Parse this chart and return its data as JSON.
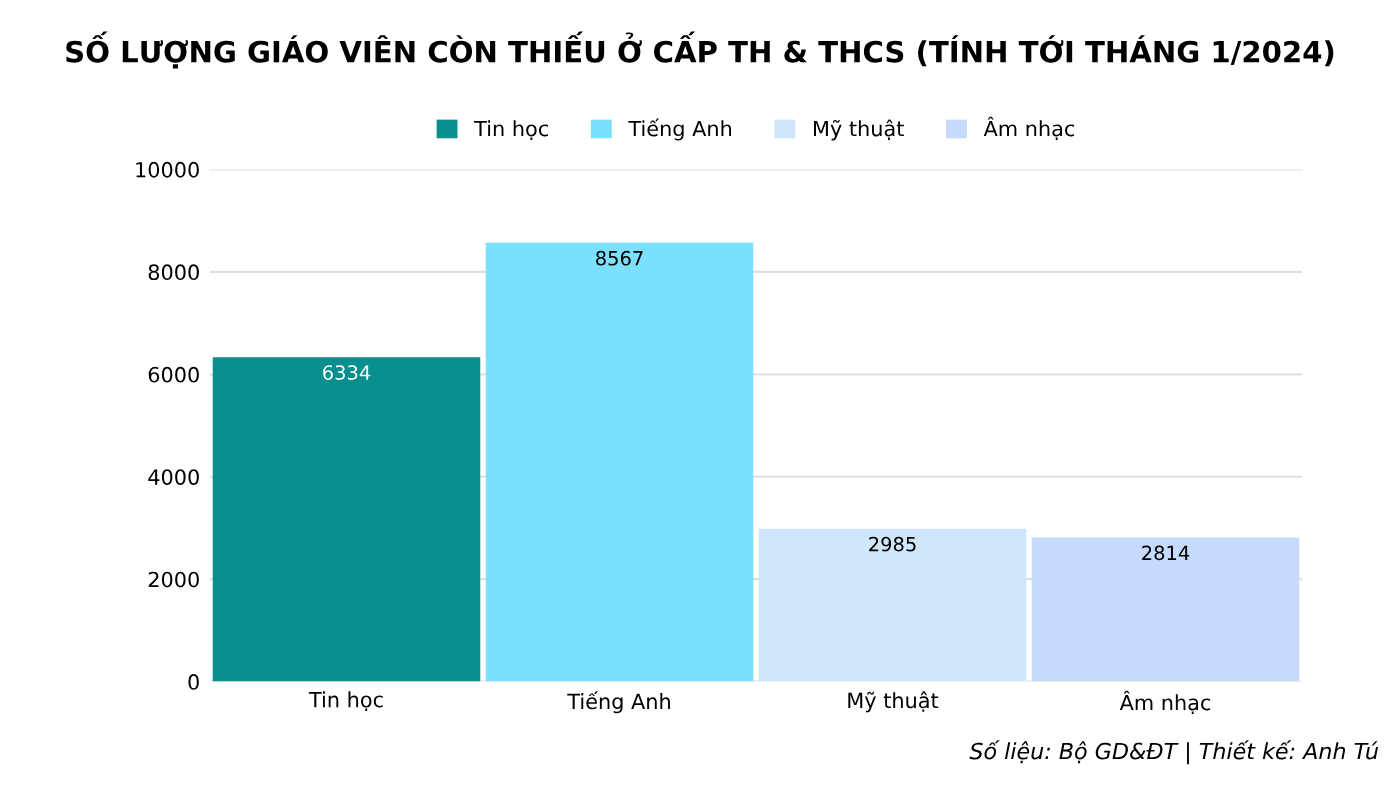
{
  "chart_data": {
    "type": "bar",
    "title": "SỐ LƯỢNG GIÁO VIÊN CÒN THIẾU Ở CẤP TH & THCS (TÍNH TỚI THÁNG 1/2024)",
    "categories": [
      "Tin học",
      "Tiếng Anh",
      "Mỹ thuật",
      "Âm nhạc"
    ],
    "series": [
      {
        "name": "Tin học",
        "color": "#0a8f8f",
        "values": [
          6334,
          null,
          null,
          null
        ]
      },
      {
        "name": "Tiếng Anh",
        "color": "#7ae0fb",
        "values": [
          null,
          8567,
          null,
          null
        ]
      },
      {
        "name": "Mỹ thuật",
        "color": "#cfe6fb",
        "values": [
          null,
          null,
          2985,
          null
        ]
      },
      {
        "name": "Âm nhạc",
        "color": "#c5dafc",
        "values": [
          null,
          null,
          null,
          2814
        ]
      }
    ],
    "ylim": [
      0,
      10000
    ],
    "yticks": [
      0,
      2000,
      4000,
      6000,
      8000,
      10000
    ],
    "grid": "y",
    "legend": "top",
    "data_labels": true,
    "annotations": [
      "Số liệu: Bộ GD&ĐT | Thiết kế: Anh Tú"
    ]
  }
}
